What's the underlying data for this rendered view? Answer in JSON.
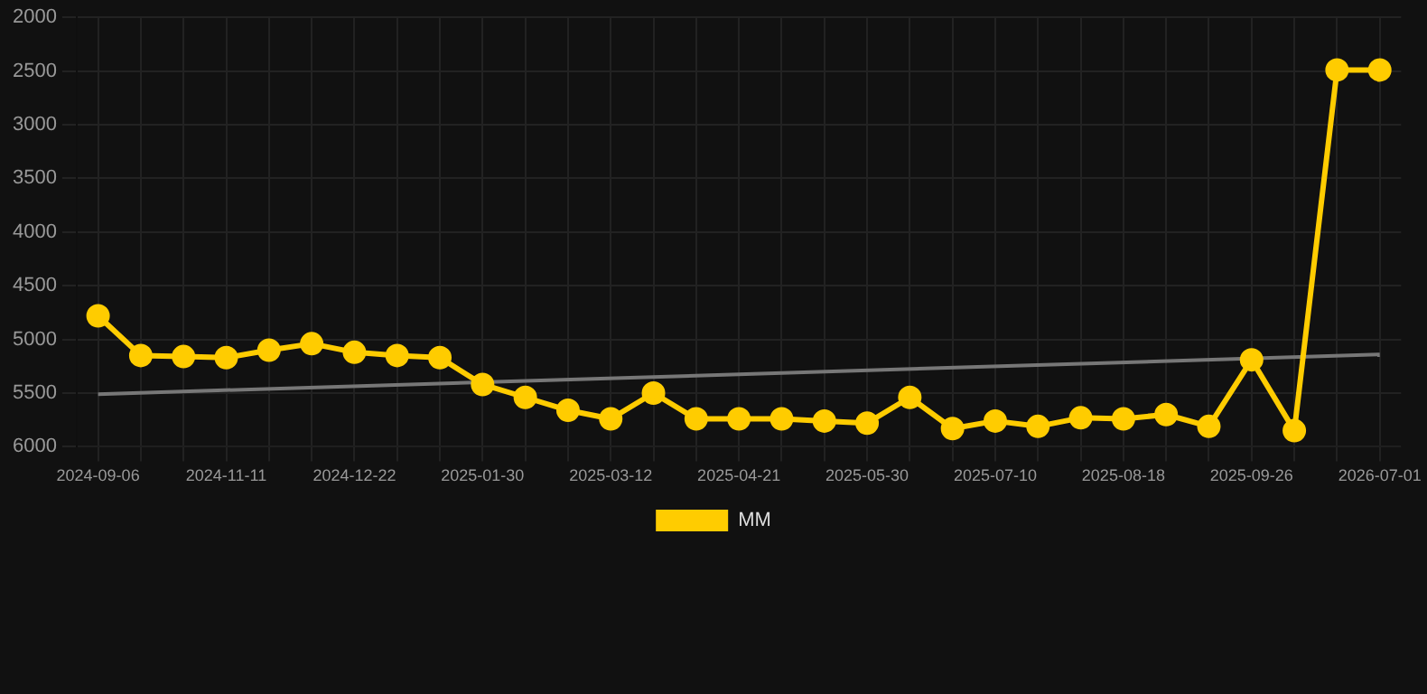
{
  "chart_data": {
    "type": "line",
    "categories": [
      "2024-09-06",
      null,
      null,
      "2024-11-11",
      null,
      null,
      "2024-12-22",
      null,
      null,
      "2025-01-30",
      null,
      null,
      "2025-03-12",
      null,
      null,
      "2025-04-21",
      null,
      null,
      "2025-05-30",
      null,
      null,
      "2025-07-10",
      null,
      null,
      "2025-08-18",
      null,
      null,
      "2025-09-26",
      null,
      null,
      "2026-07-01"
    ],
    "series": [
      {
        "name": "MM",
        "color": "#ffcc00",
        "values": [
          4780,
          5150,
          5160,
          5170,
          5100,
          5040,
          5120,
          5150,
          5170,
          5420,
          5540,
          5660,
          5740,
          5500,
          5740,
          5740,
          5740,
          5760,
          5780,
          5540,
          5830,
          5760,
          5810,
          5730,
          5740,
          5700,
          5810,
          5190,
          5850,
          2490,
          2490
        ]
      },
      {
        "type": "line",
        "color": "#777777",
        "marker": "none",
        "values": [
          5510,
          null,
          null,
          null,
          null,
          null,
          null,
          null,
          null,
          null,
          null,
          null,
          null,
          null,
          null,
          null,
          null,
          null,
          null,
          null,
          null,
          null,
          null,
          null,
          null,
          null,
          null,
          null,
          null,
          null,
          5140
        ]
      }
    ],
    "ylim": [
      6000,
      2000
    ],
    "yticks": [
      2000,
      2500,
      3000,
      3500,
      4000,
      4500,
      5000,
      5500,
      6000
    ],
    "grid": true,
    "legend": "bottom",
    "marker": "circle",
    "line_style": "solid"
  }
}
